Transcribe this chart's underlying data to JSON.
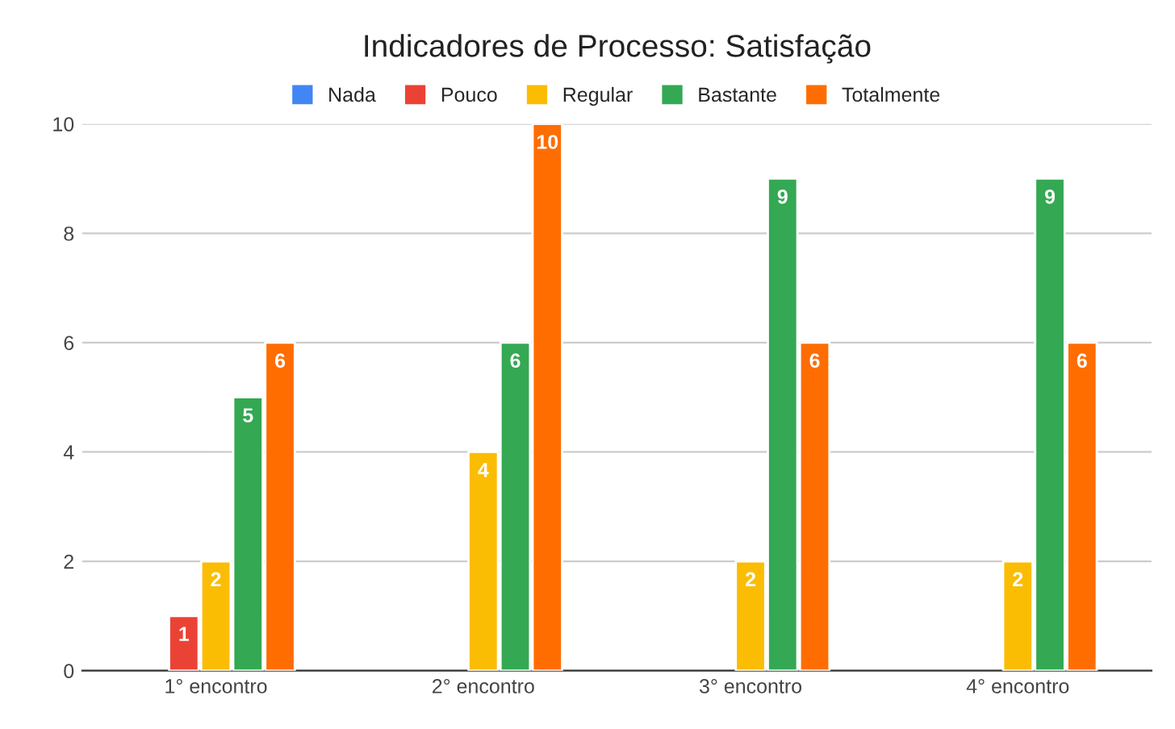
{
  "chart_data": {
    "type": "bar",
    "title": "Indicadores de Processo: Satisfação",
    "categories": [
      "1° encontro",
      "2° encontro",
      "3° encontro",
      "4° encontro"
    ],
    "series": [
      {
        "name": "Nada",
        "color": "#4285f4",
        "values": [
          null,
          null,
          null,
          null
        ],
        "value_labels": [
          null,
          null,
          null,
          null
        ]
      },
      {
        "name": "Pouco",
        "color": "#ea4335",
        "values": [
          1,
          null,
          null,
          null
        ],
        "value_labels": [
          "1",
          null,
          null,
          null
        ]
      },
      {
        "name": "Regular",
        "color": "#fbbc04",
        "values": [
          2,
          4,
          2,
          2
        ],
        "value_labels": [
          "2",
          "4",
          "2",
          "2"
        ]
      },
      {
        "name": "Bastante",
        "color": "#34a853",
        "values": [
          5,
          6,
          9,
          9
        ],
        "value_labels": [
          "5",
          "6",
          "9",
          "9"
        ]
      },
      {
        "name": "Totalmente",
        "color": "#ff6d01",
        "values": [
          6,
          10,
          6,
          6
        ],
        "value_labels": [
          "6",
          "10",
          "6",
          "6"
        ]
      }
    ],
    "ylim": [
      0,
      10
    ],
    "yticks": [
      0,
      2,
      4,
      6,
      8,
      10
    ],
    "grid": "y",
    "legend": "top"
  }
}
